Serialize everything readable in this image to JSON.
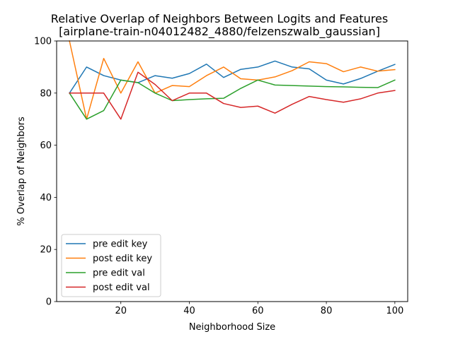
{
  "chart_data": {
    "type": "line",
    "title_line1": "Relative Overlap of Neighbors Between Logits and Features",
    "title_line2": "[airplane-train-n04012482_4880/felzenszwalb_gaussian]",
    "xlabel": "Neighborhood Size",
    "ylabel": "% Overlap of Neighbors",
    "xlim": [
      1.25,
      103.75
    ],
    "ylim": [
      0,
      100
    ],
    "xticks": [
      20,
      40,
      60,
      80,
      100
    ],
    "yticks": [
      0,
      20,
      40,
      60,
      80,
      100
    ],
    "grid": false,
    "legend_position": "lower-left",
    "x": [
      5,
      10,
      15,
      20,
      25,
      30,
      35,
      40,
      45,
      50,
      55,
      60,
      65,
      70,
      75,
      80,
      85,
      90,
      95,
      100
    ],
    "series": [
      {
        "name": "pre edit key",
        "color": "#1f77b4",
        "values": [
          80,
          90,
          86.7,
          85,
          84,
          86.7,
          85.7,
          87.5,
          91.1,
          86,
          89.1,
          90,
          92.3,
          90,
          89.3,
          85,
          83.5,
          85.6,
          88.4,
          91
        ]
      },
      {
        "name": "post edit key",
        "color": "#ff7f0e",
        "values": [
          100,
          70,
          93.3,
          80,
          92,
          80,
          82.9,
          82.5,
          86.7,
          90,
          85.5,
          85,
          86.2,
          88.6,
          92,
          91.3,
          88.2,
          90,
          88.4,
          89
        ]
      },
      {
        "name": "pre edit val",
        "color": "#2ca02c",
        "values": [
          80,
          70,
          73.3,
          85,
          84,
          80,
          77.1,
          77.5,
          77.8,
          78,
          81.8,
          85,
          83.1,
          82.9,
          82.7,
          82.5,
          82.4,
          82.2,
          82.1,
          85
        ]
      },
      {
        "name": "post edit val",
        "color": "#d62728",
        "values": [
          80,
          80,
          80,
          70,
          88,
          83.3,
          77.1,
          80,
          80,
          76,
          74.5,
          75,
          72.3,
          75.7,
          78.7,
          77.5,
          76.5,
          77.8,
          80,
          81
        ]
      }
    ]
  }
}
